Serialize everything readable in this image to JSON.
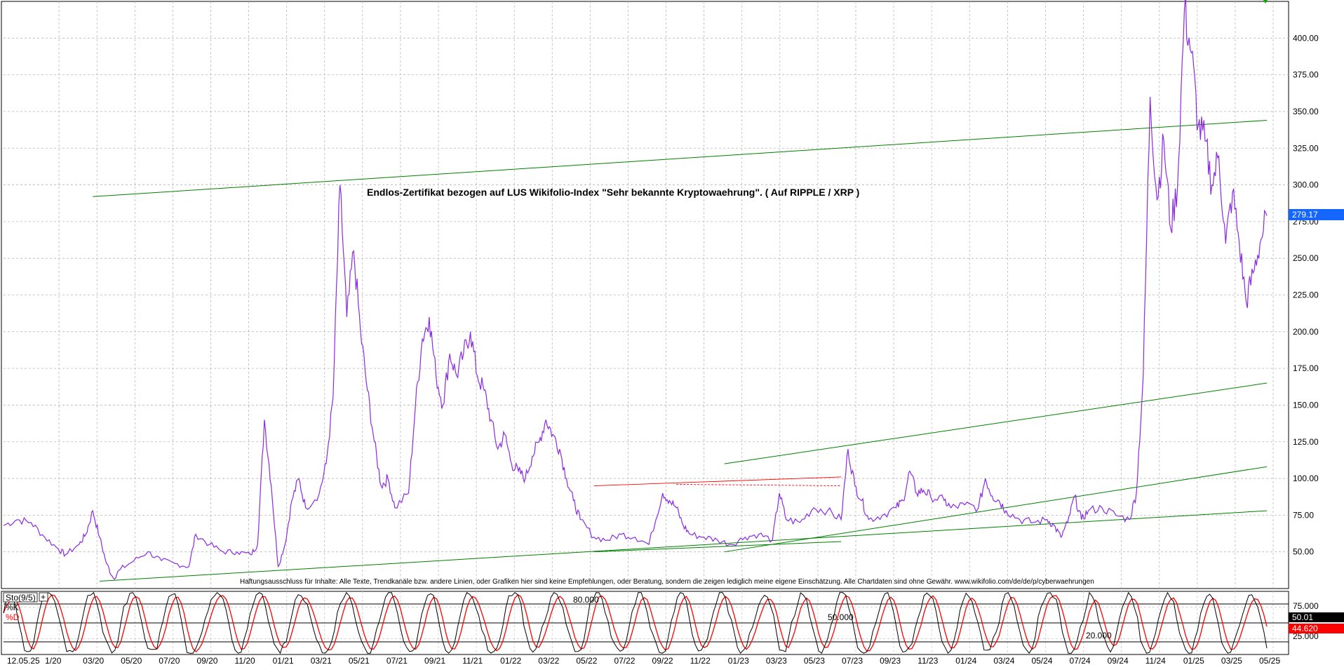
{
  "chart_data": [
    {
      "type": "line",
      "title": "Endlos-Zertifikat bezogen auf LUS Wikifolio-Index \"Sehr bekannte Kryptowaehrung\". ( Auf RIPPLE / XRP )",
      "disclaimer": "Haftungsausschluss für Inhalte: Alle Texte, Trendkanäle bzw. andere Linien, oder Grafiken hier sind keine Empfehlungen, oder Beratung, sondern die zeigen lediglich meine eigene Einschätzung. Alle Chartdaten sind ohne Gewähr. www.wikifolio.com/de/de/p/cyberwaehrungen",
      "ylim": [
        25,
        425
      ],
      "y_ticks": [
        "50.00",
        "75.00",
        "100.00",
        "125.00",
        "150.00",
        "175.00",
        "200.00",
        "225.00",
        "250.00",
        "275.00",
        "300.00",
        "325.00",
        "350.00",
        "375.00",
        "400.00"
      ],
      "x_ticks": [
        "12.05.25",
        "1/20",
        "03/20",
        "05/20",
        "07/20",
        "09/20",
        "11/20",
        "01/21",
        "03/21",
        "05/21",
        "07/21",
        "09/21",
        "11/21",
        "01/22",
        "03/22",
        "05/22",
        "07/22",
        "09/22",
        "11/22",
        "01/23",
        "03/23",
        "05/23",
        "07/23",
        "09/23",
        "11/23",
        "01/24",
        "03/24",
        "05/24",
        "07/24",
        "09/24",
        "11/24",
        "01/25",
        "03/25",
        "05/25"
      ],
      "last_price": "279.17",
      "grid": true,
      "series": [
        {
          "color": "#8b2be2",
          "points": [
            [
              0,
              68
            ],
            [
              2,
              72
            ],
            [
              4,
              70
            ],
            [
              6,
              60
            ],
            [
              8,
              52
            ],
            [
              9,
              48
            ],
            [
              11,
              55
            ],
            [
              12,
              62
            ],
            [
              13,
              78
            ],
            [
              14,
              60
            ],
            [
              15,
              42
            ],
            [
              16,
              32
            ],
            [
              17,
              38
            ],
            [
              19,
              44
            ],
            [
              21,
              50
            ],
            [
              23,
              44
            ],
            [
              25,
              42
            ],
            [
              27,
              40
            ],
            [
              28,
              62
            ],
            [
              30,
              55
            ],
            [
              32,
              50
            ],
            [
              34,
              50
            ],
            [
              36,
              48
            ],
            [
              37,
              55
            ],
            [
              38,
              140
            ],
            [
              39,
              95
            ],
            [
              40,
              40
            ],
            [
              41,
              55
            ],
            [
              42,
              85
            ],
            [
              43,
              100
            ],
            [
              44,
              80
            ],
            [
              46,
              90
            ],
            [
              47,
              110
            ],
            [
              48,
              155
            ],
            [
              49,
              300
            ],
            [
              50,
              210
            ],
            [
              51,
              255
            ],
            [
              52,
              200
            ],
            [
              53,
              160
            ],
            [
              54,
              125
            ],
            [
              55,
              95
            ],
            [
              56,
              100
            ],
            [
              57,
              80
            ],
            [
              59,
              90
            ],
            [
              60,
              150
            ],
            [
              61,
              195
            ],
            [
              62,
              210
            ],
            [
              63,
              170
            ],
            [
              64,
              150
            ],
            [
              65,
              185
            ],
            [
              66,
              170
            ],
            [
              67,
              185
            ],
            [
              68,
              200
            ],
            [
              69,
              170
            ],
            [
              70,
              160
            ],
            [
              71,
              140
            ],
            [
              72,
              120
            ],
            [
              73,
              130
            ],
            [
              74,
              110
            ],
            [
              75,
              105
            ],
            [
              76,
              100
            ],
            [
              77,
              115
            ],
            [
              78,
              125
            ],
            [
              79,
              140
            ],
            [
              80,
              130
            ],
            [
              81,
              120
            ],
            [
              82,
              100
            ],
            [
              83,
              85
            ],
            [
              84,
              72
            ],
            [
              86,
              60
            ],
            [
              88,
              58
            ],
            [
              90,
              62
            ],
            [
              92,
              60
            ],
            [
              94,
              55
            ],
            [
              96,
              90
            ],
            [
              97,
              85
            ],
            [
              98,
              80
            ],
            [
              99,
              68
            ],
            [
              100,
              62
            ],
            [
              102,
              60
            ],
            [
              104,
              58
            ],
            [
              106,
              55
            ],
            [
              108,
              60
            ],
            [
              110,
              62
            ],
            [
              112,
              58
            ],
            [
              113,
              90
            ],
            [
              114,
              72
            ],
            [
              116,
              70
            ],
            [
              118,
              80
            ],
            [
              120,
              78
            ],
            [
              122,
              72
            ],
            [
              123,
              120
            ],
            [
              124,
              95
            ],
            [
              125,
              85
            ],
            [
              126,
              72
            ],
            [
              128,
              75
            ],
            [
              130,
              80
            ],
            [
              131,
              85
            ],
            [
              132,
              105
            ],
            [
              133,
              90
            ],
            [
              134,
              92
            ],
            [
              135,
              88
            ],
            [
              137,
              85
            ],
            [
              138,
              80
            ],
            [
              140,
              82
            ],
            [
              142,
              80
            ],
            [
              143,
              100
            ],
            [
              144,
              88
            ],
            [
              145,
              85
            ],
            [
              146,
              78
            ],
            [
              148,
              72
            ],
            [
              150,
              70
            ],
            [
              152,
              72
            ],
            [
              153,
              68
            ],
            [
              154,
              60
            ],
            [
              155,
              70
            ],
            [
              156,
              88
            ],
            [
              157,
              72
            ],
            [
              158,
              78
            ],
            [
              160,
              80
            ],
            [
              162,
              75
            ],
            [
              164,
              72
            ],
            [
              165,
              90
            ],
            [
              166,
              170
            ],
            [
              167,
              360
            ],
            [
              168,
              290
            ],
            [
              169,
              330
            ],
            [
              170,
              270
            ],
            [
              171,
              300
            ],
            [
              172,
              420
            ],
            [
              173,
              390
            ],
            [
              174,
              340
            ],
            [
              175,
              330
            ],
            [
              176,
              300
            ],
            [
              177,
              320
            ],
            [
              178,
              260
            ],
            [
              179,
              295
            ],
            [
              180,
              260
            ],
            [
              181,
              220
            ],
            [
              182,
              240
            ],
            [
              183,
              260
            ],
            [
              184,
              279
            ]
          ]
        }
      ],
      "trend_lines_color": "#008000",
      "resistance_line_color": "#ff0000"
    },
    {
      "type": "line",
      "indicator_label": "Sto(9/5)",
      "series_labels": [
        "%K",
        "%D"
      ],
      "ylim": [
        0,
        100
      ],
      "y_ticks": [
        "25.000",
        "75.000"
      ],
      "levels": [
        "80.000",
        "50.000",
        "20.000"
      ],
      "last_k": "50.01",
      "last_d": "44.620",
      "series": [
        {
          "name": "%K",
          "color": "#000000"
        },
        {
          "name": "%D",
          "color": "#ff0000"
        }
      ]
    }
  ]
}
